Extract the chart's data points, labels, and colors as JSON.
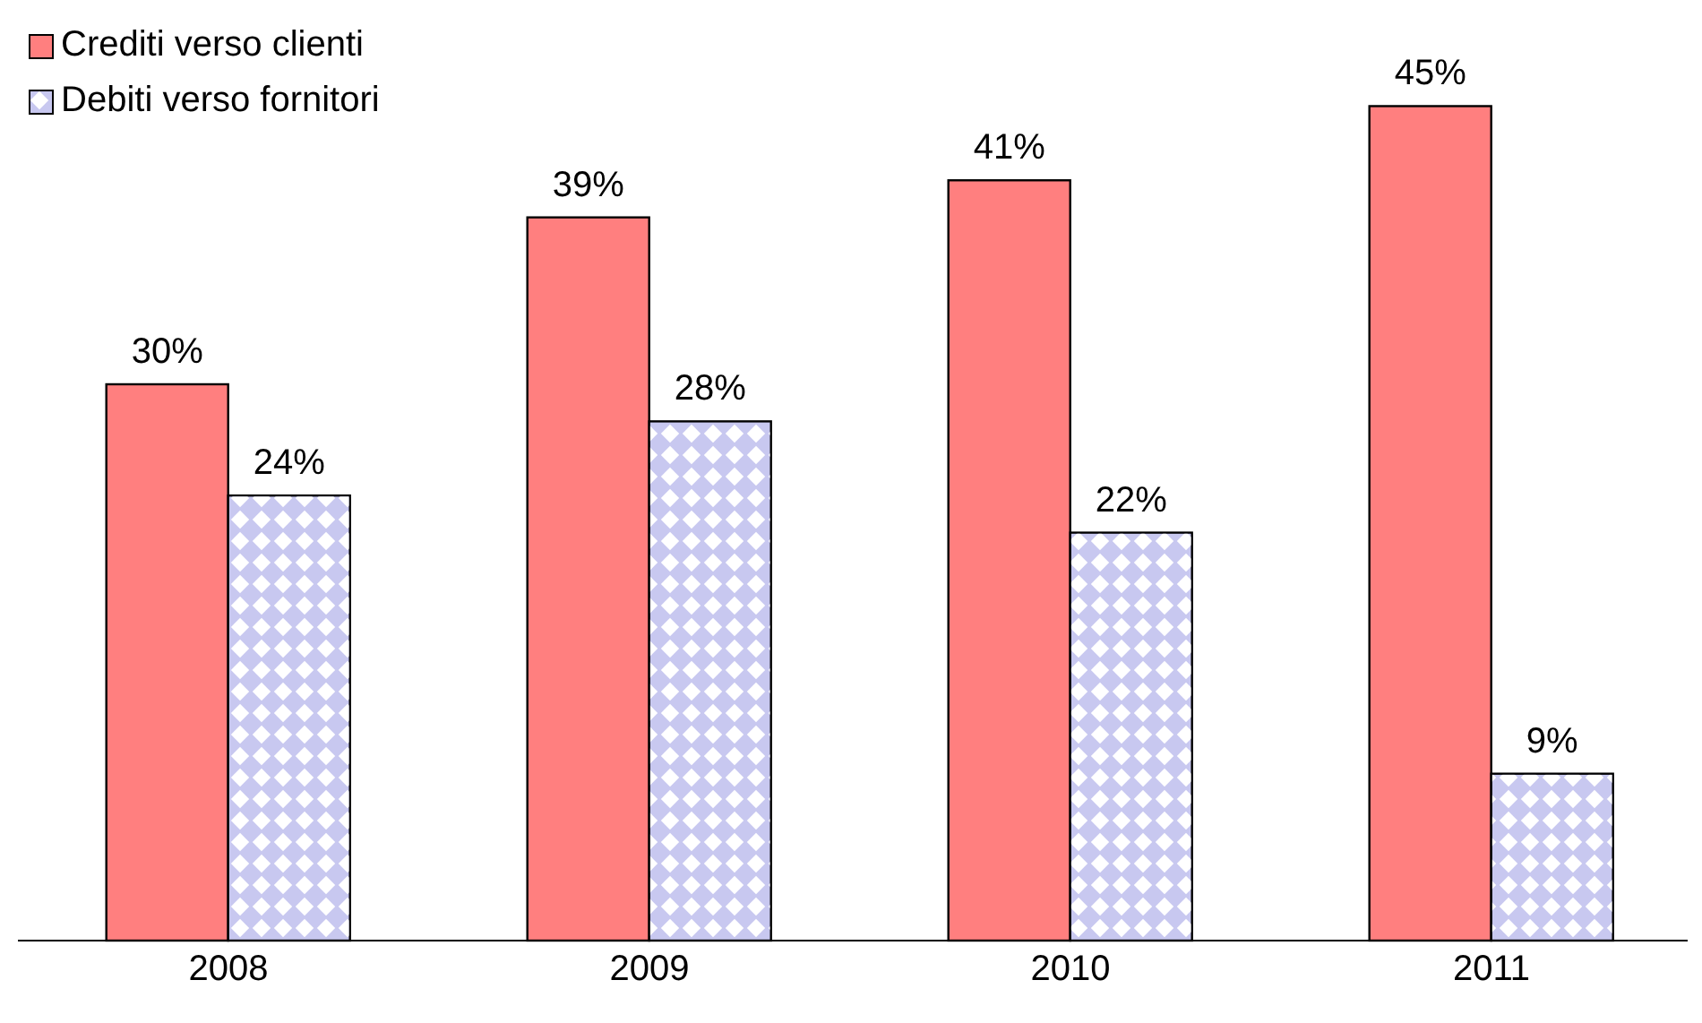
{
  "chart_data": {
    "type": "bar",
    "categories": [
      "2008",
      "2009",
      "2010",
      "2011"
    ],
    "series": [
      {
        "name": "Crediti verso clienti",
        "color": "#ff7f7f",
        "values": [
          30,
          39,
          41,
          45
        ],
        "value_labels": [
          "30%",
          "39%",
          "41%",
          "45%"
        ]
      },
      {
        "name": "Debiti verso fornitori",
        "color": "#c8c8f0",
        "values": [
          24,
          28,
          22,
          9
        ],
        "value_labels": [
          "24%",
          "28%",
          "22%",
          "9%"
        ]
      }
    ],
    "legend": "top left"
  }
}
